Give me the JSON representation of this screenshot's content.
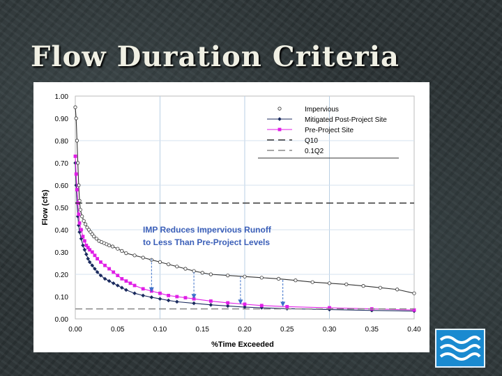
{
  "slide": {
    "title": "Flow Duration Criteria"
  },
  "chart_data": {
    "type": "line",
    "xlabel": "%Time Exceeded",
    "ylabel": "Flow (cfs)",
    "xlim": [
      0,
      0.4
    ],
    "ylim": [
      0,
      1.0
    ],
    "xticks": [
      "0.00",
      "0.05",
      "0.10",
      "0.15",
      "0.20",
      "0.25",
      "0.30",
      "0.35",
      "0.40"
    ],
    "yticks": [
      "0.00",
      "0.10",
      "0.20",
      "0.30",
      "0.40",
      "0.50",
      "0.60",
      "0.70",
      "0.80",
      "0.90",
      "1.00"
    ],
    "grid": "vertical and horizontal every 0.10 / 0.05",
    "legend_position": "top-right",
    "annotation": [
      "IMP Reduces Impervious Runoff",
      "to Less Than Pre-Project Levels"
    ],
    "annotation_color": "#3b5fb8",
    "series": [
      {
        "name": "Impervious",
        "color": "#333333",
        "marker": "open-circle",
        "style": "solid",
        "x": [
          0.0,
          0.001,
          0.002,
          0.003,
          0.004,
          0.005,
          0.006,
          0.008,
          0.01,
          0.012,
          0.014,
          0.016,
          0.018,
          0.02,
          0.022,
          0.025,
          0.028,
          0.031,
          0.034,
          0.037,
          0.04,
          0.044,
          0.05,
          0.055,
          0.06,
          0.07,
          0.08,
          0.09,
          0.1,
          0.11,
          0.12,
          0.13,
          0.14,
          0.15,
          0.16,
          0.18,
          0.2,
          0.22,
          0.24,
          0.26,
          0.28,
          0.3,
          0.32,
          0.34,
          0.36,
          0.38,
          0.4
        ],
        "y": [
          0.95,
          0.9,
          0.8,
          0.7,
          0.6,
          0.53,
          0.49,
          0.46,
          0.44,
          0.425,
          0.41,
          0.4,
          0.39,
          0.38,
          0.37,
          0.36,
          0.35,
          0.345,
          0.34,
          0.335,
          0.33,
          0.325,
          0.315,
          0.305,
          0.295,
          0.285,
          0.275,
          0.265,
          0.255,
          0.245,
          0.235,
          0.225,
          0.215,
          0.207,
          0.2,
          0.195,
          0.19,
          0.185,
          0.18,
          0.173,
          0.165,
          0.16,
          0.155,
          0.148,
          0.14,
          0.132,
          0.115
        ]
      },
      {
        "name": "Mitigated Post-Project Site",
        "color": "#1a2a5e",
        "marker": "filled-diamond",
        "style": "solid",
        "x": [
          0.0,
          0.001,
          0.002,
          0.003,
          0.004,
          0.005,
          0.007,
          0.009,
          0.011,
          0.013,
          0.015,
          0.017,
          0.02,
          0.023,
          0.026,
          0.03,
          0.035,
          0.04,
          0.045,
          0.05,
          0.055,
          0.06,
          0.07,
          0.08,
          0.09,
          0.1,
          0.11,
          0.12,
          0.14,
          0.16,
          0.18,
          0.2,
          0.22,
          0.25,
          0.3,
          0.35,
          0.4
        ],
        "y": [
          0.7,
          0.6,
          0.52,
          0.46,
          0.42,
          0.39,
          0.36,
          0.33,
          0.31,
          0.29,
          0.27,
          0.255,
          0.24,
          0.225,
          0.21,
          0.195,
          0.18,
          0.17,
          0.16,
          0.15,
          0.14,
          0.13,
          0.115,
          0.105,
          0.097,
          0.09,
          0.083,
          0.077,
          0.07,
          0.063,
          0.058,
          0.053,
          0.05,
          0.046,
          0.042,
          0.038,
          0.035
        ]
      },
      {
        "name": "Pre-Project Site",
        "color": "#e01ee6",
        "marker": "filled-square",
        "style": "solid",
        "x": [
          0.0,
          0.001,
          0.002,
          0.003,
          0.004,
          0.005,
          0.007,
          0.009,
          0.011,
          0.013,
          0.015,
          0.017,
          0.02,
          0.023,
          0.026,
          0.03,
          0.035,
          0.04,
          0.045,
          0.05,
          0.055,
          0.06,
          0.065,
          0.07,
          0.08,
          0.09,
          0.1,
          0.11,
          0.12,
          0.13,
          0.14,
          0.16,
          0.18,
          0.2,
          0.22,
          0.25,
          0.3,
          0.35,
          0.4
        ],
        "y": [
          0.73,
          0.65,
          0.58,
          0.52,
          0.47,
          0.43,
          0.4,
          0.37,
          0.35,
          0.33,
          0.32,
          0.31,
          0.3,
          0.285,
          0.27,
          0.255,
          0.24,
          0.225,
          0.21,
          0.195,
          0.18,
          0.17,
          0.16,
          0.15,
          0.135,
          0.125,
          0.115,
          0.105,
          0.1,
          0.095,
          0.09,
          0.08,
          0.072,
          0.066,
          0.06,
          0.055,
          0.05,
          0.045,
          0.04
        ]
      },
      {
        "name": "Q10",
        "color": "#333333",
        "marker": "none",
        "style": "dashed",
        "x": [
          0,
          0.4
        ],
        "y": [
          0.52,
          0.52
        ]
      },
      {
        "name": "0.1Q2",
        "color": "#888888",
        "marker": "none",
        "style": "dashed",
        "x": [
          0,
          0.4
        ],
        "y": [
          0.045,
          0.045
        ]
      }
    ],
    "arrows": [
      {
        "x": 0.09,
        "from": 0.27,
        "to": 0.12
      },
      {
        "x": 0.14,
        "from": 0.21,
        "to": 0.09
      },
      {
        "x": 0.195,
        "from": 0.19,
        "to": 0.065
      },
      {
        "x": 0.245,
        "from": 0.175,
        "to": 0.055
      }
    ]
  }
}
